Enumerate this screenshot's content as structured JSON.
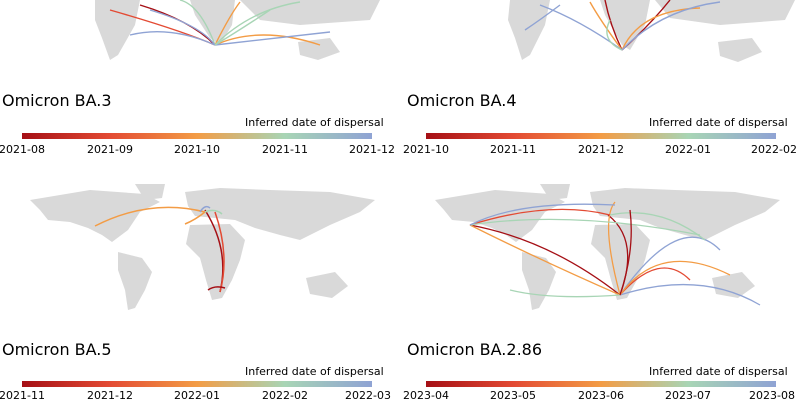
{
  "panels": [
    {
      "title": "Omicron BA.3",
      "legend_title": "Inferred date of dispersal",
      "ticks": [
        "2021-08",
        "2021-09",
        "2021-10",
        "2021-11",
        "2021-12"
      ]
    },
    {
      "title": "Omicron BA.4",
      "legend_title": "Inferred date of dispersal",
      "ticks": [
        "2021-10",
        "2021-11",
        "2021-12",
        "2022-01",
        "2022-02"
      ]
    },
    {
      "title": "Omicron BA.5",
      "legend_title": "Inferred date of dispersal",
      "ticks": [
        "2021-11",
        "2021-12",
        "2022-01",
        "2022-02",
        "2022-03"
      ]
    },
    {
      "title": "Omicron BA.2.86",
      "legend_title": "Inferred date of dispersal",
      "ticks": [
        "2023-04",
        "2023-05",
        "2023-06",
        "2023-07",
        "2023-08"
      ]
    }
  ],
  "colors": {
    "land": "#d9d9d9",
    "gradient": [
      "#a50f15",
      "#e34a33",
      "#f39c45",
      "#a8d5b5",
      "#8fa3d4"
    ]
  }
}
